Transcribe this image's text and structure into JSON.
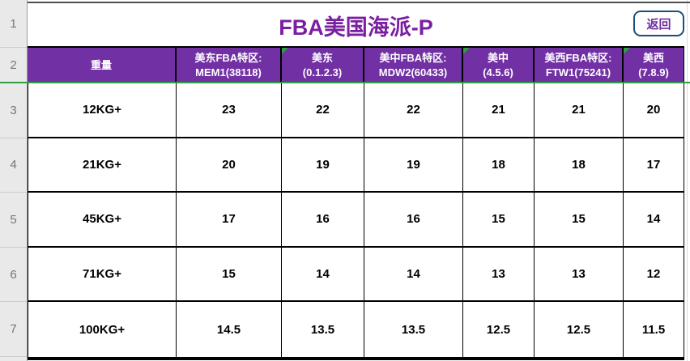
{
  "title": "FBA美国海派-P",
  "back_button_label": "返回",
  "gutter_rows": [
    "1",
    "2",
    "3",
    "4",
    "5",
    "6",
    "7"
  ],
  "header_cells": [
    {
      "line1": "重量",
      "line2": ""
    },
    {
      "line1": "美东FBA特区:",
      "line2": "MEM1(38118)"
    },
    {
      "line1": "美东",
      "line2": "(0.1.2.3)",
      "flag": "green-triangle"
    },
    {
      "line1": "美中FBA特区:",
      "line2": "MDW2(60433)"
    },
    {
      "line1": "美中",
      "line2": "(4.5.6)",
      "flag": "green-triangle"
    },
    {
      "line1": "美西FBA特区:",
      "line2": "FTW1(75241)"
    },
    {
      "line1": "美西",
      "line2": "(7.8.9)",
      "flag": "green-triangle"
    }
  ],
  "rows": [
    {
      "weight": "12KG+",
      "values": [
        "23",
        "22",
        "22",
        "21",
        "21",
        "20"
      ]
    },
    {
      "weight": "21KG+",
      "values": [
        "20",
        "19",
        "19",
        "18",
        "18",
        "17"
      ]
    },
    {
      "weight": "45KG+",
      "values": [
        "17",
        "16",
        "16",
        "15",
        "15",
        "14"
      ]
    },
    {
      "weight": "71KG+",
      "values": [
        "15",
        "14",
        "14",
        "13",
        "13",
        "12"
      ]
    },
    {
      "weight": "100KG+",
      "values": [
        "14.5",
        "13.5",
        "13.5",
        "12.5",
        "12.5",
        "11.5"
      ]
    }
  ],
  "colors": {
    "header_bg": "#7130a3",
    "title_text": "#7b1fa2",
    "accent_green": "#2f9e44",
    "button_border": "#1f4e79",
    "button_text": "#7030a0"
  }
}
